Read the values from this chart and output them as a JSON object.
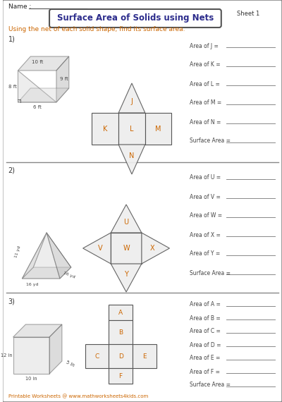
{
  "title": "Surface Area of Solids using Nets",
  "sheet": "Sheet 1",
  "name_label": "Name :",
  "instruction": "Using the net of each solid shape, find its surface area.",
  "footer": "Printable Worksheets @ www.mathworksheets4kids.com",
  "bg_color": "#ffffff",
  "title_color": "#2c2c8c",
  "text_color": "#cc6600",
  "section_labels": [
    "1)",
    "2)",
    "3)"
  ],
  "problem1": {
    "answer_labels": [
      "Area of J =",
      "Area of K =",
      "Area of L =",
      "Area of M =",
      "Area of N =",
      "Surface Area ="
    ]
  },
  "problem2": {
    "answer_labels": [
      "Area of U =",
      "Area of V =",
      "Area of W =",
      "Area of X =",
      "Area of Y =",
      "Surface Area ="
    ]
  },
  "problem3": {
    "answer_labels": [
      "Area of A =",
      "Area of B =",
      "Area of C =",
      "Area of D =",
      "Area of E =",
      "Area of F =",
      "Surface Area ="
    ]
  }
}
